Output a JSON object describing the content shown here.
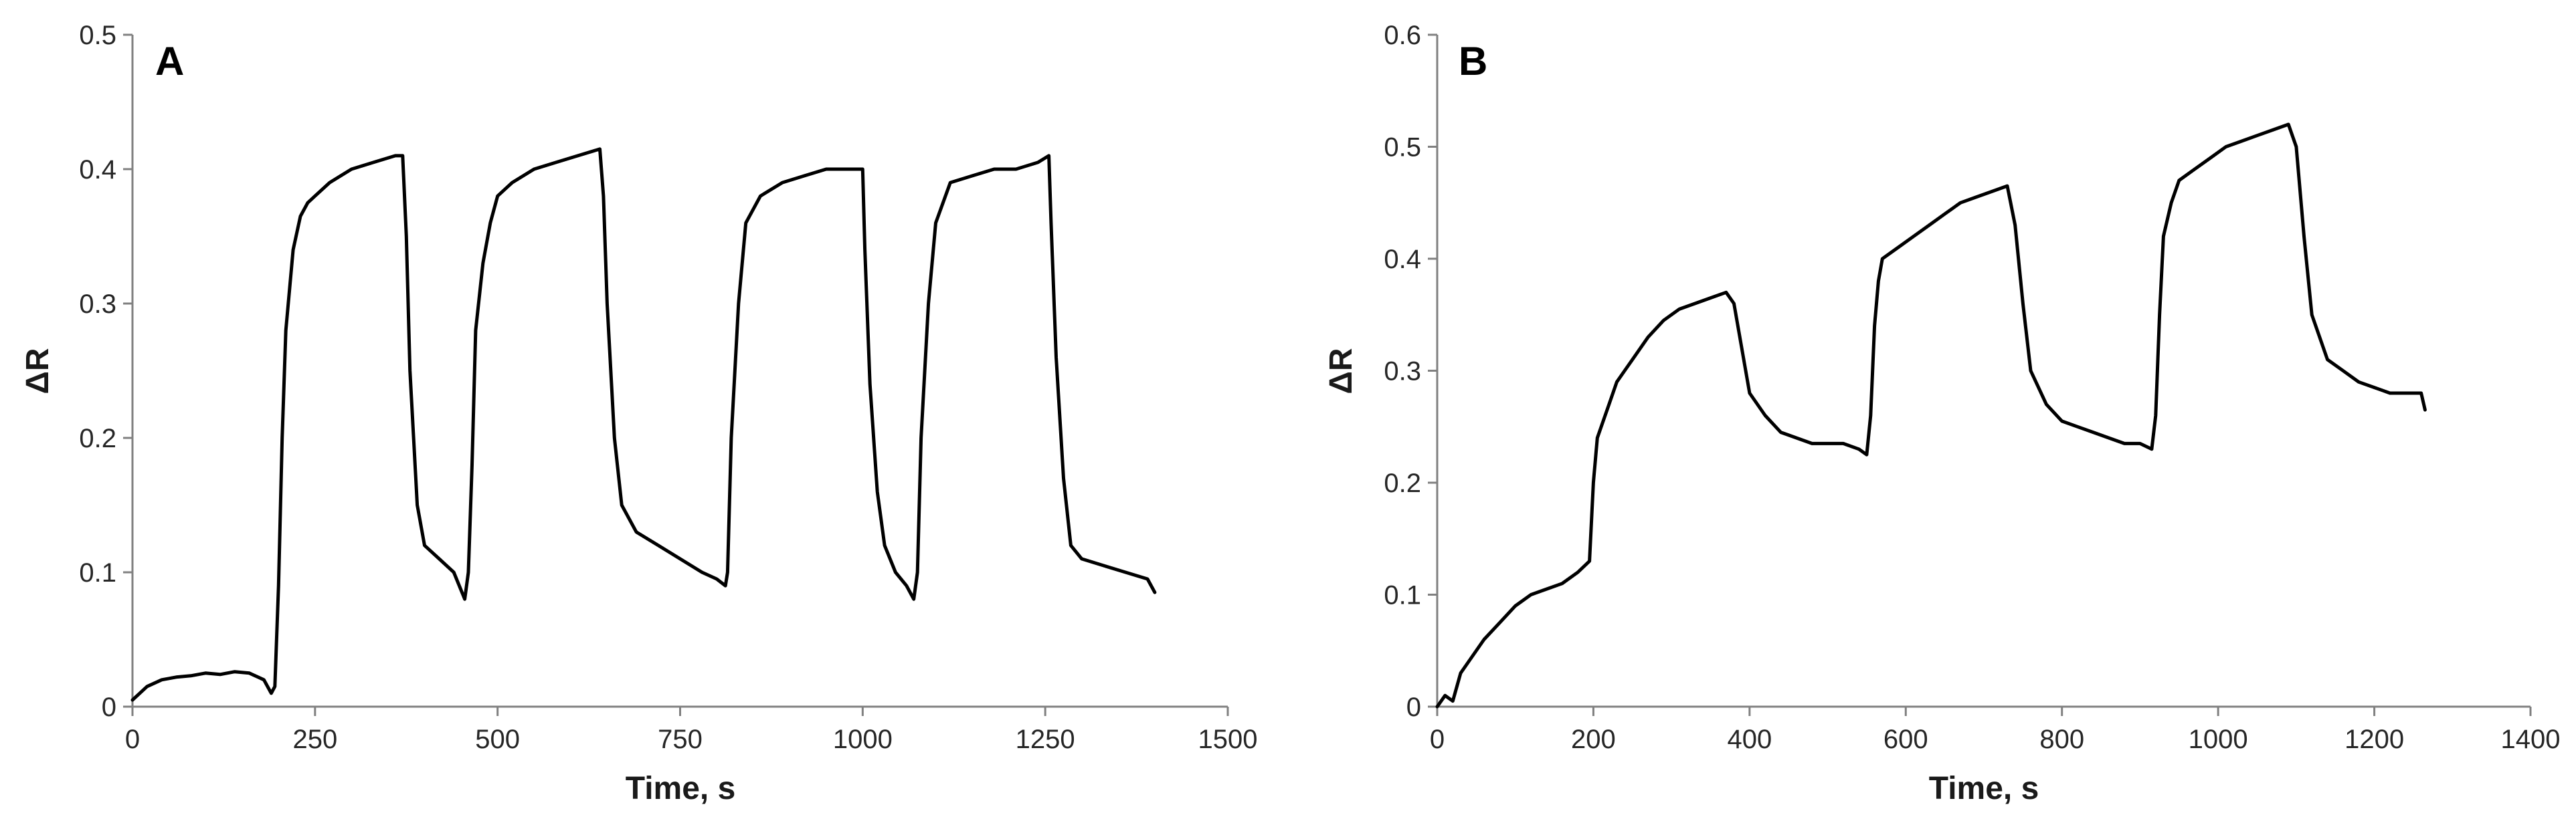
{
  "chart_data": [
    {
      "panel_label": "A",
      "type": "line",
      "xlabel": "Time, s",
      "ylabel": "ΔR",
      "xlim": [
        0,
        1500
      ],
      "ylim": [
        0,
        0.5
      ],
      "xticks": [
        0,
        250,
        500,
        750,
        1000,
        1250,
        1500
      ],
      "yticks": [
        0,
        0.1,
        0.2,
        0.3,
        0.4,
        0.5
      ],
      "x_tick_labels": [
        "0",
        "250",
        "500",
        "750",
        "1000",
        "1250",
        "1500"
      ],
      "y_tick_labels": [
        "0",
        "0.1",
        "0.2",
        "0.3",
        "0.4",
        "0.5"
      ],
      "grid": false,
      "series": [
        {
          "color": "#000000",
          "x": [
            0,
            10,
            20,
            40,
            60,
            80,
            100,
            120,
            140,
            160,
            180,
            190,
            195,
            200,
            205,
            210,
            220,
            230,
            240,
            250,
            270,
            300,
            330,
            360,
            370,
            375,
            380,
            390,
            400,
            420,
            440,
            455,
            460,
            465,
            470,
            480,
            490,
            500,
            520,
            550,
            580,
            610,
            640,
            645,
            650,
            660,
            670,
            690,
            720,
            750,
            780,
            800,
            812,
            815,
            820,
            830,
            840,
            860,
            890,
            920,
            950,
            980,
            1000,
            1003,
            1010,
            1020,
            1030,
            1045,
            1060,
            1070,
            1075,
            1080,
            1090,
            1100,
            1120,
            1150,
            1180,
            1210,
            1240,
            1255,
            1258,
            1265,
            1275,
            1285,
            1300,
            1330,
            1360,
            1390,
            1400
          ],
          "y": [
            0.005,
            0.01,
            0.015,
            0.02,
            0.022,
            0.023,
            0.025,
            0.024,
            0.026,
            0.025,
            0.02,
            0.01,
            0.015,
            0.09,
            0.2,
            0.28,
            0.34,
            0.365,
            0.375,
            0.38,
            0.39,
            0.4,
            0.405,
            0.41,
            0.41,
            0.35,
            0.25,
            0.15,
            0.12,
            0.11,
            0.1,
            0.08,
            0.1,
            0.18,
            0.28,
            0.33,
            0.36,
            0.38,
            0.39,
            0.4,
            0.405,
            0.41,
            0.415,
            0.38,
            0.3,
            0.2,
            0.15,
            0.13,
            0.12,
            0.11,
            0.1,
            0.095,
            0.09,
            0.1,
            0.2,
            0.3,
            0.36,
            0.38,
            0.39,
            0.395,
            0.4,
            0.4,
            0.4,
            0.34,
            0.24,
            0.16,
            0.12,
            0.1,
            0.09,
            0.08,
            0.1,
            0.2,
            0.3,
            0.36,
            0.39,
            0.395,
            0.4,
            0.4,
            0.405,
            0.41,
            0.36,
            0.26,
            0.17,
            0.12,
            0.11,
            0.105,
            0.1,
            0.095,
            0.085
          ]
        }
      ]
    },
    {
      "panel_label": "B",
      "type": "line",
      "xlabel": "Time, s",
      "ylabel": "ΔR",
      "xlim": [
        0,
        1400
      ],
      "ylim": [
        0,
        0.6
      ],
      "xticks": [
        0,
        200,
        400,
        600,
        800,
        1000,
        1200,
        1400
      ],
      "yticks": [
        0,
        0.1,
        0.2,
        0.3,
        0.4,
        0.5,
        0.6
      ],
      "x_tick_labels": [
        "0",
        "200",
        "400",
        "600",
        "800",
        "1000",
        "1200",
        "1400"
      ],
      "y_tick_labels": [
        "0",
        "0.1",
        "0.2",
        "0.3",
        "0.4",
        "0.5",
        "0.6"
      ],
      "grid": false,
      "series": [
        {
          "color": "#000000",
          "x": [
            0,
            10,
            20,
            30,
            40,
            60,
            80,
            100,
            120,
            140,
            160,
            180,
            195,
            200,
            205,
            210,
            220,
            230,
            240,
            250,
            270,
            290,
            310,
            330,
            350,
            370,
            380,
            390,
            400,
            420,
            440,
            460,
            480,
            500,
            520,
            540,
            550,
            555,
            560,
            565,
            570,
            590,
            610,
            630,
            650,
            670,
            690,
            710,
            730,
            740,
            750,
            760,
            780,
            800,
            820,
            840,
            860,
            880,
            900,
            915,
            920,
            925,
            930,
            940,
            950,
            970,
            990,
            1010,
            1030,
            1050,
            1070,
            1090,
            1100,
            1110,
            1120,
            1140,
            1160,
            1180,
            1200,
            1220,
            1240,
            1260,
            1265
          ],
          "y": [
            0.0,
            0.01,
            0.005,
            0.03,
            0.04,
            0.06,
            0.075,
            0.09,
            0.1,
            0.105,
            0.11,
            0.12,
            0.13,
            0.2,
            0.24,
            0.25,
            0.27,
            0.29,
            0.3,
            0.31,
            0.33,
            0.345,
            0.355,
            0.36,
            0.365,
            0.37,
            0.36,
            0.32,
            0.28,
            0.26,
            0.245,
            0.24,
            0.235,
            0.235,
            0.235,
            0.23,
            0.225,
            0.26,
            0.34,
            0.38,
            0.4,
            0.41,
            0.42,
            0.43,
            0.44,
            0.45,
            0.455,
            0.46,
            0.465,
            0.43,
            0.36,
            0.3,
            0.27,
            0.255,
            0.25,
            0.245,
            0.24,
            0.235,
            0.235,
            0.23,
            0.26,
            0.35,
            0.42,
            0.45,
            0.47,
            0.48,
            0.49,
            0.5,
            0.505,
            0.51,
            0.515,
            0.52,
            0.5,
            0.42,
            0.35,
            0.31,
            0.3,
            0.29,
            0.285,
            0.28,
            0.28,
            0.28,
            0.265
          ]
        }
      ]
    }
  ]
}
